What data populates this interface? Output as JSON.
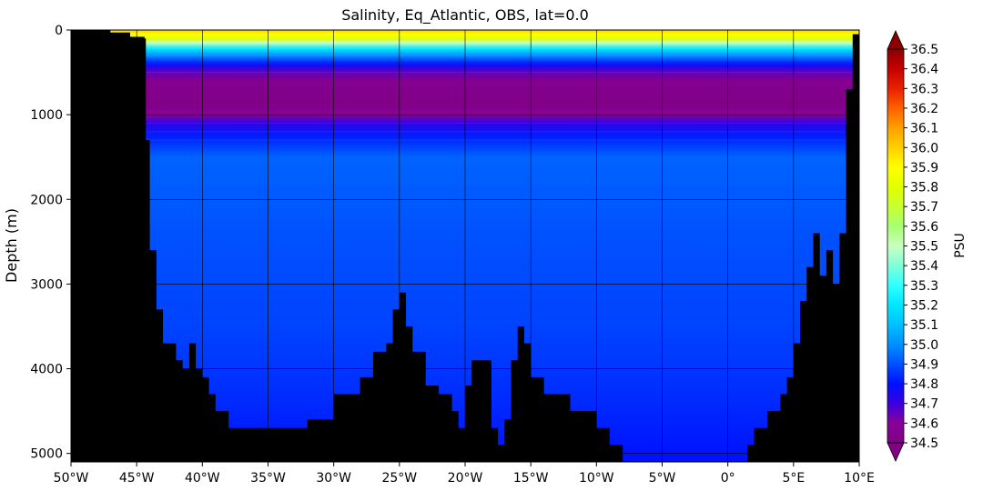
{
  "chart_data": {
    "type": "heatmap",
    "title": "Salinity, Eq_Atlantic, OBS, lat=0.0",
    "xlabel": "",
    "ylabel": "Depth (m)",
    "xlim": [
      -50,
      10
    ],
    "ylim": [
      5100,
      0
    ],
    "y_inverted": true,
    "grid": true,
    "x_ticks": [
      {
        "value": -50,
        "label": "50°W"
      },
      {
        "value": -45,
        "label": "45°W"
      },
      {
        "value": -40,
        "label": "40°W"
      },
      {
        "value": -35,
        "label": "35°W"
      },
      {
        "value": -30,
        "label": "30°W"
      },
      {
        "value": -25,
        "label": "25°W"
      },
      {
        "value": -20,
        "label": "20°W"
      },
      {
        "value": -15,
        "label": "15°W"
      },
      {
        "value": -10,
        "label": "10°W"
      },
      {
        "value": -5,
        "label": "5°W"
      },
      {
        "value": 0,
        "label": "0°"
      },
      {
        "value": 5,
        "label": "5°E"
      },
      {
        "value": 10,
        "label": "10°E"
      }
    ],
    "y_ticks": [
      {
        "value": 0,
        "label": "0"
      },
      {
        "value": 1000,
        "label": "1000"
      },
      {
        "value": 2000,
        "label": "2000"
      },
      {
        "value": 3000,
        "label": "3000"
      },
      {
        "value": 4000,
        "label": "4000"
      },
      {
        "value": 5000,
        "label": "5000"
      }
    ],
    "colorbar": {
      "label": "PSU",
      "range": [
        34.5,
        36.5
      ],
      "extend": "both",
      "ticks": [
        "34.5",
        "34.6",
        "34.7",
        "34.8",
        "34.9",
        "35.0",
        "35.1",
        "35.2",
        "35.3",
        "35.4",
        "35.5",
        "35.6",
        "35.7",
        "35.8",
        "35.9",
        "36.0",
        "36.1",
        "36.2",
        "36.3",
        "36.4",
        "36.5"
      ],
      "colormap_stops": [
        {
          "value": 34.5,
          "color": "#7f0083"
        },
        {
          "value": 34.6,
          "color": "#8a0099"
        },
        {
          "value": 34.7,
          "color": "#3a00e0"
        },
        {
          "value": 34.8,
          "color": "#0010ff"
        },
        {
          "value": 34.9,
          "color": "#0050ff"
        },
        {
          "value": 35.0,
          "color": "#0090ff"
        },
        {
          "value": 35.1,
          "color": "#00c0ff"
        },
        {
          "value": 35.2,
          "color": "#00e8ff"
        },
        {
          "value": 35.3,
          "color": "#30ffff"
        },
        {
          "value": 35.4,
          "color": "#80ffd8"
        },
        {
          "value": 35.5,
          "color": "#c8ffc0"
        },
        {
          "value": 35.6,
          "color": "#a8ff70"
        },
        {
          "value": 35.7,
          "color": "#c8ff30"
        },
        {
          "value": 35.8,
          "color": "#e0ff00"
        },
        {
          "value": 35.9,
          "color": "#ffff00"
        },
        {
          "value": 36.0,
          "color": "#ffd000"
        },
        {
          "value": 36.1,
          "color": "#ffa000"
        },
        {
          "value": 36.2,
          "color": "#ff6000"
        },
        {
          "value": 36.3,
          "color": "#e82000"
        },
        {
          "value": 36.4,
          "color": "#c80000"
        },
        {
          "value": 36.5,
          "color": "#8a0000"
        }
      ]
    },
    "salinity_profile": [
      {
        "depth": 0,
        "value": 36.0
      },
      {
        "depth": 50,
        "value": 35.9
      },
      {
        "depth": 100,
        "value": 35.8
      },
      {
        "depth": 150,
        "value": 35.5
      },
      {
        "depth": 220,
        "value": 35.2
      },
      {
        "depth": 300,
        "value": 35.0
      },
      {
        "depth": 400,
        "value": 34.8
      },
      {
        "depth": 500,
        "value": 34.65
      },
      {
        "depth": 600,
        "value": 34.55
      },
      {
        "depth": 900,
        "value": 34.52
      },
      {
        "depth": 1000,
        "value": 34.6
      },
      {
        "depth": 1100,
        "value": 34.72
      },
      {
        "depth": 1250,
        "value": 34.82
      },
      {
        "depth": 1500,
        "value": 34.93
      },
      {
        "depth": 2500,
        "value": 34.9
      },
      {
        "depth": 3500,
        "value": 34.88
      },
      {
        "depth": 4200,
        "value": 34.85
      },
      {
        "depth": 5100,
        "value": 34.8
      }
    ],
    "bathymetry": [
      {
        "lon": -50,
        "depth": 0
      },
      {
        "lon": -47,
        "depth": 30
      },
      {
        "lon": -45.5,
        "depth": 80
      },
      {
        "lon": -44.4,
        "depth": 100
      },
      {
        "lon": -44.3,
        "depth": 1300
      },
      {
        "lon": -44,
        "depth": 2600
      },
      {
        "lon": -43.5,
        "depth": 3300
      },
      {
        "lon": -43,
        "depth": 3700
      },
      {
        "lon": -42,
        "depth": 3900
      },
      {
        "lon": -41.5,
        "depth": 4000
      },
      {
        "lon": -41,
        "depth": 3700
      },
      {
        "lon": -40.5,
        "depth": 4000
      },
      {
        "lon": -40,
        "depth": 4100
      },
      {
        "lon": -39.5,
        "depth": 4300
      },
      {
        "lon": -39,
        "depth": 4500
      },
      {
        "lon": -38,
        "depth": 4700
      },
      {
        "lon": -36,
        "depth": 4700
      },
      {
        "lon": -34,
        "depth": 4700
      },
      {
        "lon": -32,
        "depth": 4600
      },
      {
        "lon": -30,
        "depth": 4300
      },
      {
        "lon": -29,
        "depth": 4300
      },
      {
        "lon": -28,
        "depth": 4100
      },
      {
        "lon": -27,
        "depth": 3800
      },
      {
        "lon": -26,
        "depth": 3700
      },
      {
        "lon": -25.5,
        "depth": 3300
      },
      {
        "lon": -25,
        "depth": 3100
      },
      {
        "lon": -24.5,
        "depth": 3500
      },
      {
        "lon": -24,
        "depth": 3800
      },
      {
        "lon": -23,
        "depth": 4200
      },
      {
        "lon": -22,
        "depth": 4300
      },
      {
        "lon": -21,
        "depth": 4500
      },
      {
        "lon": -20.5,
        "depth": 4700
      },
      {
        "lon": -20,
        "depth": 4200
      },
      {
        "lon": -19.5,
        "depth": 3900
      },
      {
        "lon": -18.5,
        "depth": 3900
      },
      {
        "lon": -18,
        "depth": 4700
      },
      {
        "lon": -17.5,
        "depth": 4900
      },
      {
        "lon": -17,
        "depth": 4600
      },
      {
        "lon": -16.5,
        "depth": 3900
      },
      {
        "lon": -16,
        "depth": 3500
      },
      {
        "lon": -15.5,
        "depth": 3700
      },
      {
        "lon": -15,
        "depth": 4100
      },
      {
        "lon": -14,
        "depth": 4300
      },
      {
        "lon": -12,
        "depth": 4500
      },
      {
        "lon": -10,
        "depth": 4700
      },
      {
        "lon": -9,
        "depth": 4900
      },
      {
        "lon": -8,
        "depth": 5100
      },
      {
        "lon": -5,
        "depth": 5100
      },
      {
        "lon": -2,
        "depth": 5100
      },
      {
        "lon": 1,
        "depth": 5100
      },
      {
        "lon": 1.5,
        "depth": 4900
      },
      {
        "lon": 2,
        "depth": 4700
      },
      {
        "lon": 3,
        "depth": 4500
      },
      {
        "lon": 4,
        "depth": 4300
      },
      {
        "lon": 4.5,
        "depth": 4100
      },
      {
        "lon": 5,
        "depth": 3700
      },
      {
        "lon": 5.5,
        "depth": 3200
      },
      {
        "lon": 6,
        "depth": 2800
      },
      {
        "lon": 6.5,
        "depth": 2400
      },
      {
        "lon": 7,
        "depth": 2900
      },
      {
        "lon": 7.5,
        "depth": 2600
      },
      {
        "lon": 8,
        "depth": 3000
      },
      {
        "lon": 8.5,
        "depth": 2400
      },
      {
        "lon": 9,
        "depth": 700
      },
      {
        "lon": 9.5,
        "depth": 50
      },
      {
        "lon": 10,
        "depth": 0
      }
    ]
  }
}
